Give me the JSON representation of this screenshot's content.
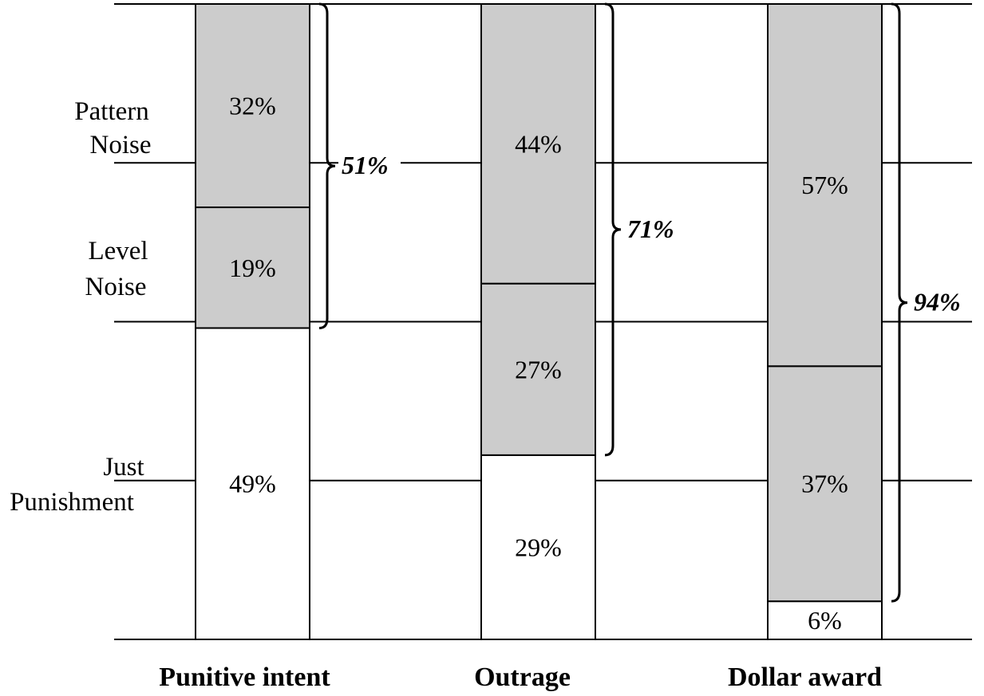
{
  "chart_data": {
    "type": "bar",
    "stacked": true,
    "categories": [
      "Punitive intent",
      "Outrage",
      "Dollar award"
    ],
    "series": [
      {
        "values": [
          49,
          29,
          6
        ]
      },
      {
        "values": [
          19,
          27,
          37
        ]
      },
      {
        "values": [
          32,
          44,
          57
        ]
      }
    ],
    "segment_labels": [
      [
        "49%",
        "19%",
        "32%"
      ],
      [
        "29%",
        "27%",
        "44%"
      ],
      [
        "6%",
        "37%",
        "57%"
      ]
    ],
    "noise_totals": [
      {
        "label": "51%",
        "value": 51
      },
      {
        "label": "71%",
        "value": 71
      },
      {
        "label": "94%",
        "value": 94
      }
    ],
    "row_labels": [
      [
        "Pattern",
        "Noise"
      ],
      [
        "Level",
        "Noise"
      ],
      [
        "Just",
        "Punishment"
      ]
    ],
    "ylim": [
      0,
      100
    ],
    "grid": true,
    "colors": {
      "noise": "#cccccc",
      "just": "#ffffff",
      "line": "#000000"
    }
  }
}
